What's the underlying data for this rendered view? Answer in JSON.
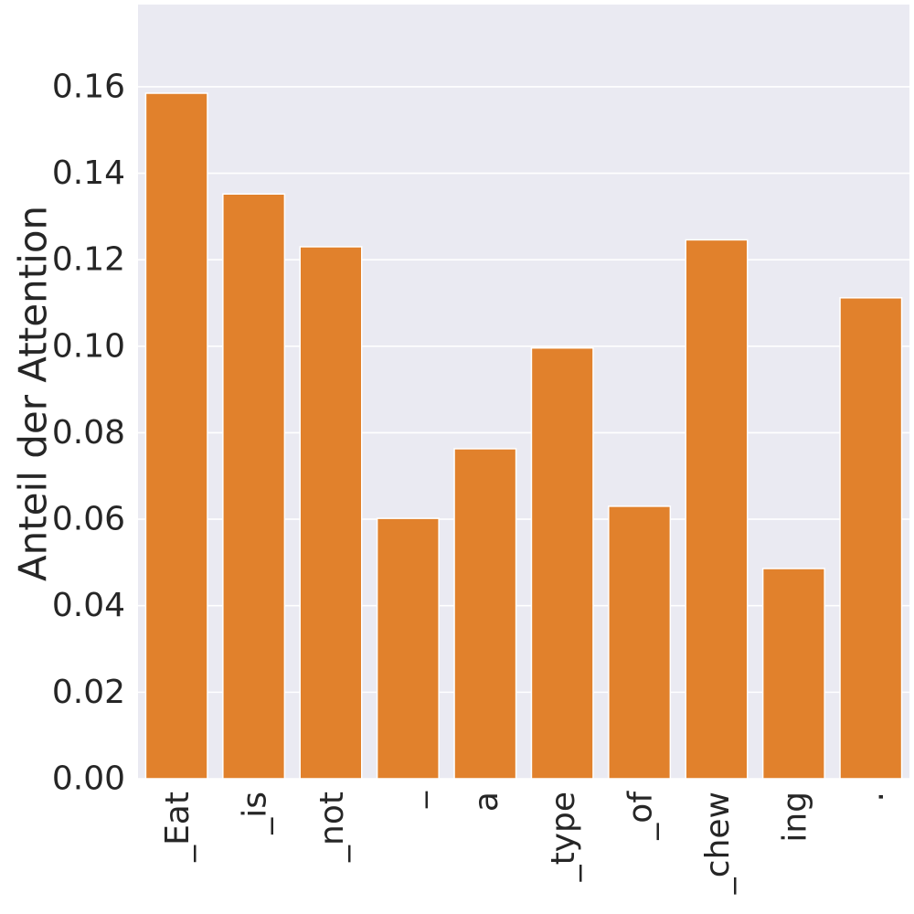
{
  "chart_data": {
    "type": "bar",
    "categories": [
      "_Eat",
      "_is",
      "_not",
      "_",
      "a",
      "_type",
      "_of",
      "_chew",
      "ing",
      "."
    ],
    "values": [
      0.1585,
      0.1352,
      0.123,
      0.0602,
      0.0763,
      0.0996,
      0.063,
      0.1246,
      0.0486,
      0.1112
    ],
    "ylabel": "Anteil der Attention",
    "xlabel": "",
    "ylim": [
      0,
      0.179
    ],
    "yticks": [
      "0.00",
      "0.02",
      "0.04",
      "0.06",
      "0.08",
      "0.10",
      "0.12",
      "0.14",
      "0.16"
    ],
    "grid": true,
    "bar_color": "#e1812c",
    "background_color": "#eaeaf2"
  }
}
